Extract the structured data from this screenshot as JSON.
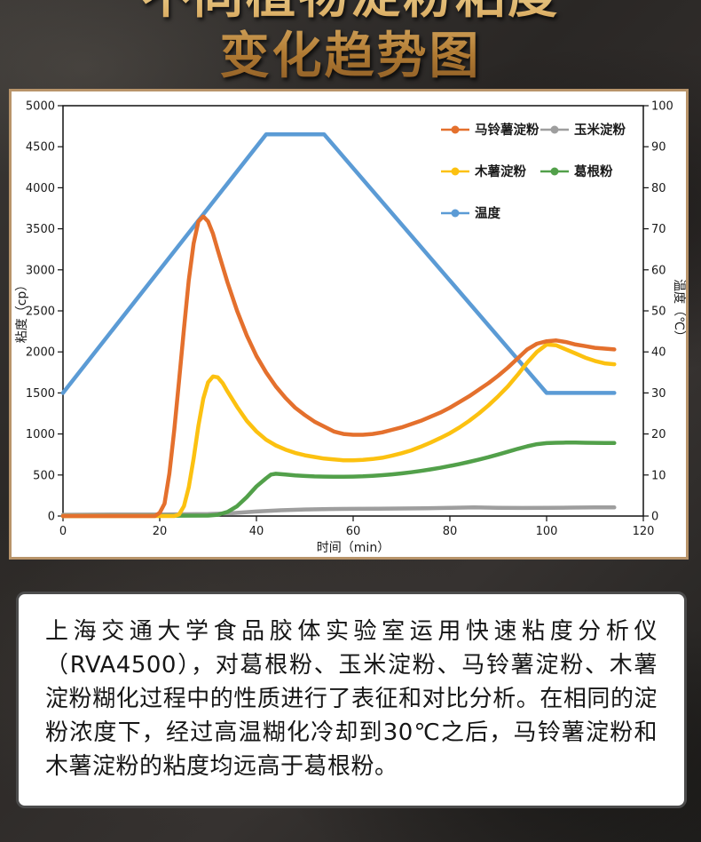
{
  "title": {
    "line1": "不同植物淀粉粘度",
    "line2": "变化趋势图"
  },
  "chart_data": {
    "type": "line",
    "title": "不同植物淀粉粘度变化趋势图",
    "xlabel": "时间（min）",
    "ylabel_left": "粘度（cp）",
    "ylabel_right": "温度（℃）",
    "x_axis": {
      "min": 0,
      "max": 120,
      "step": 20
    },
    "y_left": {
      "min": 0,
      "max": 5000,
      "step": 500
    },
    "y_right": {
      "min": 0,
      "max": 100,
      "step": 10
    },
    "grid": false,
    "legend_position": "top-right-inside",
    "series": [
      {
        "name": "马铃薯淀粉",
        "color": "#e4702d",
        "axis": "left",
        "points": [
          [
            0,
            0
          ],
          [
            19,
            0
          ],
          [
            20,
            40
          ],
          [
            21,
            150
          ],
          [
            22,
            520
          ],
          [
            23,
            1050
          ],
          [
            24,
            1650
          ],
          [
            25,
            2280
          ],
          [
            26,
            2870
          ],
          [
            27,
            3320
          ],
          [
            28,
            3590
          ],
          [
            29,
            3650
          ],
          [
            30,
            3590
          ],
          [
            31,
            3440
          ],
          [
            32,
            3240
          ],
          [
            34,
            2850
          ],
          [
            36,
            2500
          ],
          [
            38,
            2200
          ],
          [
            40,
            1950
          ],
          [
            42,
            1750
          ],
          [
            44,
            1580
          ],
          [
            46,
            1440
          ],
          [
            48,
            1320
          ],
          [
            50,
            1230
          ],
          [
            52,
            1150
          ],
          [
            54,
            1090
          ],
          [
            56,
            1030
          ],
          [
            58,
            1000
          ],
          [
            60,
            990
          ],
          [
            62,
            990
          ],
          [
            64,
            1000
          ],
          [
            66,
            1020
          ],
          [
            68,
            1050
          ],
          [
            70,
            1080
          ],
          [
            72,
            1120
          ],
          [
            74,
            1160
          ],
          [
            76,
            1210
          ],
          [
            78,
            1260
          ],
          [
            80,
            1320
          ],
          [
            82,
            1390
          ],
          [
            84,
            1460
          ],
          [
            86,
            1540
          ],
          [
            88,
            1620
          ],
          [
            90,
            1710
          ],
          [
            92,
            1810
          ],
          [
            94,
            1920
          ],
          [
            96,
            2030
          ],
          [
            98,
            2100
          ],
          [
            100,
            2130
          ],
          [
            102,
            2140
          ],
          [
            104,
            2120
          ],
          [
            106,
            2090
          ],
          [
            108,
            2070
          ],
          [
            110,
            2050
          ],
          [
            112,
            2040
          ],
          [
            114,
            2030
          ]
        ]
      },
      {
        "name": "玉米淀粉",
        "color": "#9e9e9e",
        "axis": "left",
        "points": [
          [
            0,
            15
          ],
          [
            10,
            18
          ],
          [
            20,
            20
          ],
          [
            30,
            25
          ],
          [
            35,
            35
          ],
          [
            40,
            55
          ],
          [
            45,
            70
          ],
          [
            50,
            80
          ],
          [
            55,
            85
          ],
          [
            60,
            88
          ],
          [
            65,
            90
          ],
          [
            70,
            92
          ],
          [
            75,
            95
          ],
          [
            80,
            100
          ],
          [
            85,
            105
          ],
          [
            90,
            100
          ],
          [
            95,
            98
          ],
          [
            100,
            100
          ],
          [
            105,
            103
          ],
          [
            110,
            105
          ],
          [
            114,
            105
          ]
        ]
      },
      {
        "name": "木薯淀粉",
        "color": "#fcc110",
        "axis": "left",
        "points": [
          [
            0,
            0
          ],
          [
            23,
            0
          ],
          [
            24,
            20
          ],
          [
            25,
            120
          ],
          [
            26,
            350
          ],
          [
            27,
            700
          ],
          [
            28,
            1100
          ],
          [
            29,
            1430
          ],
          [
            30,
            1630
          ],
          [
            31,
            1700
          ],
          [
            32,
            1690
          ],
          [
            33,
            1620
          ],
          [
            34,
            1520
          ],
          [
            36,
            1330
          ],
          [
            38,
            1160
          ],
          [
            40,
            1030
          ],
          [
            42,
            930
          ],
          [
            44,
            860
          ],
          [
            46,
            810
          ],
          [
            48,
            770
          ],
          [
            50,
            740
          ],
          [
            52,
            720
          ],
          [
            54,
            700
          ],
          [
            56,
            690
          ],
          [
            58,
            680
          ],
          [
            60,
            680
          ],
          [
            62,
            685
          ],
          [
            64,
            695
          ],
          [
            66,
            710
          ],
          [
            68,
            735
          ],
          [
            70,
            765
          ],
          [
            72,
            800
          ],
          [
            74,
            845
          ],
          [
            76,
            895
          ],
          [
            78,
            950
          ],
          [
            80,
            1010
          ],
          [
            82,
            1080
          ],
          [
            84,
            1160
          ],
          [
            86,
            1250
          ],
          [
            88,
            1350
          ],
          [
            90,
            1460
          ],
          [
            92,
            1580
          ],
          [
            94,
            1720
          ],
          [
            96,
            1870
          ],
          [
            98,
            2000
          ],
          [
            100,
            2090
          ],
          [
            102,
            2080
          ],
          [
            104,
            2030
          ],
          [
            106,
            1980
          ],
          [
            108,
            1930
          ],
          [
            110,
            1890
          ],
          [
            112,
            1860
          ],
          [
            114,
            1850
          ]
        ]
      },
      {
        "name": "葛根粉",
        "color": "#52a04a",
        "axis": "left",
        "points": [
          [
            0,
            0
          ],
          [
            30,
            5
          ],
          [
            32,
            15
          ],
          [
            34,
            50
          ],
          [
            36,
            120
          ],
          [
            38,
            230
          ],
          [
            40,
            360
          ],
          [
            42,
            460
          ],
          [
            43,
            505
          ],
          [
            44,
            515
          ],
          [
            46,
            505
          ],
          [
            48,
            495
          ],
          [
            50,
            488
          ],
          [
            52,
            483
          ],
          [
            54,
            480
          ],
          [
            56,
            478
          ],
          [
            58,
            478
          ],
          [
            60,
            480
          ],
          [
            62,
            484
          ],
          [
            64,
            490
          ],
          [
            66,
            498
          ],
          [
            68,
            508
          ],
          [
            70,
            520
          ],
          [
            72,
            534
          ],
          [
            74,
            550
          ],
          [
            76,
            568
          ],
          [
            78,
            588
          ],
          [
            80,
            610
          ],
          [
            82,
            634
          ],
          [
            84,
            660
          ],
          [
            86,
            688
          ],
          [
            88,
            718
          ],
          [
            90,
            750
          ],
          [
            92,
            784
          ],
          [
            94,
            818
          ],
          [
            96,
            850
          ],
          [
            98,
            875
          ],
          [
            100,
            888
          ],
          [
            102,
            893
          ],
          [
            104,
            895
          ],
          [
            106,
            895
          ],
          [
            108,
            893
          ],
          [
            110,
            892
          ],
          [
            112,
            890
          ],
          [
            114,
            890
          ]
        ]
      },
      {
        "name": "温度",
        "color": "#5b9bd5",
        "axis": "right",
        "points": [
          [
            0,
            30
          ],
          [
            42,
            93
          ],
          [
            54,
            93
          ],
          [
            100,
            30
          ],
          [
            114,
            30
          ]
        ]
      }
    ]
  },
  "description": "上海交通大学食品胶体实验室运用快速粘度分析仪（RVA4500），对葛根粉、玉米淀粉、马铃薯淀粉、木薯淀粉糊化过程中的性质进行了表征和对比分析。在相同的淀粉浓度下，经过高温糊化冷却到30℃之后，马铃薯淀粉和木薯淀粉的粘度均远高于葛根粉。"
}
